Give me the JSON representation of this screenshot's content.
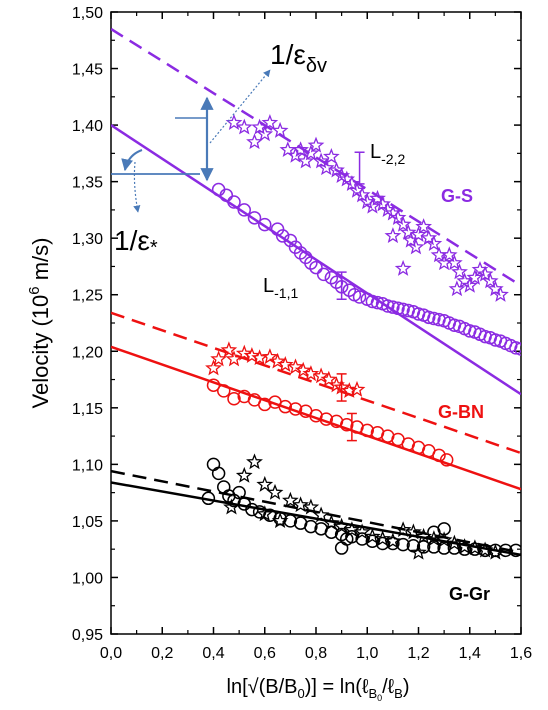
{
  "chart_data": {
    "type": "scatter",
    "xlabel_main": "ln[√(B/B",
    "xlabel_sub0": "0",
    "xlabel_mid": ")] = ln(ℓ",
    "xlabel_subB0": "B",
    "xlabel_subB0_sub": "0",
    "xlabel_slash": "/ℓ",
    "xlabel_subB": "B",
    "xlabel_close": ")",
    "ylabel_pre": "Velocity (10",
    "ylabel_sup": "6",
    "ylabel_post": " m/s)",
    "xlim": [
      0.0,
      1.6
    ],
    "ylim": [
      0.95,
      1.5
    ],
    "xticks": [
      "0,0",
      "0,2",
      "0,4",
      "0,6",
      "0,8",
      "1,0",
      "1,2",
      "1,4",
      "1,6"
    ],
    "yticks": [
      "0,95",
      "1,00",
      "1,05",
      "1,10",
      "1,15",
      "1,20",
      "1,25",
      "1,30",
      "1,35",
      "1,40",
      "1,45",
      "1,50"
    ],
    "colors": {
      "gs": "#8b2be2",
      "gbn": "#ee1111",
      "ggr": "#000000",
      "annotation": "#4a7ab8"
    },
    "series": [
      {
        "name": "G-S",
        "color": "#8b2be2",
        "fit_solid": {
          "label_main": "L",
          "label_sub": "-1,1",
          "points": [
            [
              0.0,
              1.4
            ],
            [
              1.6,
              1.162
            ]
          ]
        },
        "fit_dashed": {
          "label_main": "L",
          "label_sub": "-2,2",
          "points": [
            [
              0.0,
              1.485
            ],
            [
              1.6,
              1.258
            ]
          ]
        },
        "circles": [
          [
            0.42,
            1.343
          ],
          [
            0.45,
            1.338
          ],
          [
            0.48,
            1.332
          ],
          [
            0.52,
            1.325
          ],
          [
            0.56,
            1.318
          ],
          [
            0.6,
            1.312
          ],
          [
            0.65,
            1.308
          ],
          [
            0.67,
            1.302
          ],
          [
            0.7,
            1.298
          ],
          [
            0.72,
            1.292
          ],
          [
            0.74,
            1.287
          ],
          [
            0.76,
            1.283
          ],
          [
            0.78,
            1.278
          ],
          [
            0.8,
            1.274
          ],
          [
            0.83,
            1.268
          ],
          [
            0.86,
            1.265
          ],
          [
            0.88,
            1.261
          ],
          [
            0.9,
            1.257
          ],
          [
            0.93,
            1.254
          ],
          [
            0.95,
            1.25
          ],
          [
            0.97,
            1.248
          ],
          [
            1.0,
            1.246
          ],
          [
            1.02,
            1.244
          ],
          [
            1.04,
            1.243
          ],
          [
            1.06,
            1.242
          ],
          [
            1.08,
            1.24
          ],
          [
            1.1,
            1.239
          ],
          [
            1.12,
            1.238
          ],
          [
            1.14,
            1.237
          ],
          [
            1.16,
            1.236
          ],
          [
            1.18,
            1.235
          ],
          [
            1.2,
            1.233
          ],
          [
            1.22,
            1.232
          ],
          [
            1.24,
            1.23
          ],
          [
            1.26,
            1.229
          ],
          [
            1.28,
            1.228
          ],
          [
            1.3,
            1.227
          ],
          [
            1.32,
            1.225
          ],
          [
            1.34,
            1.223
          ],
          [
            1.36,
            1.222
          ],
          [
            1.38,
            1.22
          ],
          [
            1.4,
            1.218
          ],
          [
            1.42,
            1.217
          ],
          [
            1.44,
            1.215
          ],
          [
            1.46,
            1.213
          ],
          [
            1.48,
            1.212
          ],
          [
            1.5,
            1.21
          ],
          [
            1.52,
            1.209
          ],
          [
            1.54,
            1.207
          ],
          [
            1.56,
            1.205
          ],
          [
            1.58,
            1.203
          ],
          [
            1.6,
            1.202
          ]
        ],
        "stars": [
          [
            0.48,
            1.402
          ],
          [
            0.52,
            1.398
          ],
          [
            0.56,
            1.385
          ],
          [
            0.58,
            1.398
          ],
          [
            0.6,
            1.392
          ],
          [
            0.62,
            1.402
          ],
          [
            0.66,
            1.395
          ],
          [
            0.69,
            1.378
          ],
          [
            0.72,
            1.373
          ],
          [
            0.74,
            1.378
          ],
          [
            0.76,
            1.368
          ],
          [
            0.78,
            1.375
          ],
          [
            0.8,
            1.382
          ],
          [
            0.82,
            1.368
          ],
          [
            0.84,
            1.362
          ],
          [
            0.86,
            1.372
          ],
          [
            0.88,
            1.36
          ],
          [
            0.9,
            1.355
          ],
          [
            0.92,
            1.352
          ],
          [
            0.94,
            1.348
          ],
          [
            0.96,
            1.342
          ],
          [
            0.98,
            1.338
          ],
          [
            1.0,
            1.332
          ],
          [
            1.02,
            1.328
          ],
          [
            1.04,
            1.335
          ],
          [
            1.06,
            1.33
          ],
          [
            1.08,
            1.325
          ],
          [
            1.1,
            1.322
          ],
          [
            1.12,
            1.318
          ],
          [
            1.14,
            1.312
          ],
          [
            1.16,
            1.305
          ],
          [
            1.17,
            1.298
          ],
          [
            1.19,
            1.292
          ],
          [
            1.2,
            1.303
          ],
          [
            1.22,
            1.31
          ],
          [
            1.24,
            1.3
          ],
          [
            1.26,
            1.295
          ],
          [
            1.28,
            1.285
          ],
          [
            1.3,
            1.278
          ],
          [
            1.32,
            1.285
          ],
          [
            1.34,
            1.278
          ],
          [
            1.36,
            1.27
          ],
          [
            1.38,
            1.262
          ],
          [
            1.4,
            1.258
          ],
          [
            1.42,
            1.265
          ],
          [
            1.44,
            1.272
          ],
          [
            1.46,
            1.268
          ],
          [
            1.48,
            1.262
          ],
          [
            1.5,
            1.255
          ],
          [
            1.52,
            1.25
          ],
          [
            1.35,
            1.255
          ],
          [
            1.14,
            1.273
          ],
          [
            1.1,
            1.302
          ]
        ],
        "error_bar": {
          "x": 0.9,
          "y": 1.258,
          "err": 0.012,
          "star_x": 0.97,
          "star_y": 1.362,
          "star_err": 0.014
        }
      },
      {
        "name": "G-BN",
        "color": "#ee1111",
        "fit_solid": {
          "points": [
            [
              0.0,
              1.204
            ],
            [
              1.6,
              1.078
            ]
          ]
        },
        "fit_dashed": {
          "points": [
            [
              0.0,
              1.234
            ],
            [
              1.6,
              1.11
            ]
          ]
        },
        "circles": [
          [
            0.4,
            1.17
          ],
          [
            0.44,
            1.165
          ],
          [
            0.48,
            1.158
          ],
          [
            0.52,
            1.16
          ],
          [
            0.56,
            1.157
          ],
          [
            0.6,
            1.153
          ],
          [
            0.64,
            1.155
          ],
          [
            0.68,
            1.151
          ],
          [
            0.72,
            1.149
          ],
          [
            0.76,
            1.147
          ],
          [
            0.8,
            1.143
          ],
          [
            0.84,
            1.14
          ],
          [
            0.88,
            1.138
          ],
          [
            0.92,
            1.135
          ],
          [
            0.96,
            1.133
          ],
          [
            1.0,
            1.13
          ],
          [
            1.04,
            1.128
          ],
          [
            1.08,
            1.125
          ],
          [
            1.12,
            1.122
          ],
          [
            1.16,
            1.118
          ],
          [
            1.2,
            1.115
          ],
          [
            1.24,
            1.112
          ],
          [
            1.28,
            1.108
          ],
          [
            1.31,
            1.104
          ]
        ],
        "stars": [
          [
            0.42,
            1.193
          ],
          [
            0.46,
            1.201
          ],
          [
            0.48,
            1.193
          ],
          [
            0.52,
            1.198
          ],
          [
            0.55,
            1.196
          ],
          [
            0.58,
            1.194
          ],
          [
            0.62,
            1.195
          ],
          [
            0.65,
            1.191
          ],
          [
            0.68,
            1.188
          ],
          [
            0.72,
            1.186
          ],
          [
            0.75,
            1.183
          ],
          [
            0.78,
            1.18
          ],
          [
            0.82,
            1.178
          ],
          [
            0.85,
            1.175
          ],
          [
            0.88,
            1.17
          ],
          [
            0.9,
            1.168
          ],
          [
            0.93,
            1.165
          ],
          [
            0.96,
            1.166
          ],
          [
            0.4,
            1.185
          ]
        ],
        "error_bar": {
          "x": 0.9,
          "y": 1.168,
          "err": 0.012,
          "circle_x": 0.94,
          "circle_y": 1.133,
          "circle_err": 0.012
        }
      },
      {
        "name": "G-Gr",
        "color": "#000000",
        "fit_solid": {
          "points": [
            [
              0.0,
              1.084
            ],
            [
              1.6,
              1.02
            ]
          ]
        },
        "fit_dashed": {
          "points": [
            [
              0.0,
              1.094
            ],
            [
              1.6,
              1.022
            ]
          ]
        },
        "circles": [
          [
            0.4,
            1.1
          ],
          [
            0.42,
            1.092
          ],
          [
            0.44,
            1.08
          ],
          [
            0.46,
            1.072
          ],
          [
            0.48,
            1.068
          ],
          [
            0.5,
            1.075
          ],
          [
            0.52,
            1.065
          ],
          [
            0.55,
            1.06
          ],
          [
            0.58,
            1.058
          ],
          [
            0.62,
            1.055
          ],
          [
            0.66,
            1.052
          ],
          [
            0.7,
            1.05
          ],
          [
            0.74,
            1.048
          ],
          [
            0.78,
            1.045
          ],
          [
            0.82,
            1.043
          ],
          [
            0.86,
            1.04
          ],
          [
            0.9,
            1.038
          ],
          [
            0.94,
            1.036
          ],
          [
            0.98,
            1.034
          ],
          [
            1.02,
            1.032
          ],
          [
            1.06,
            1.03
          ],
          [
            1.1,
            1.03
          ],
          [
            1.14,
            1.029
          ],
          [
            1.18,
            1.028
          ],
          [
            1.22,
            1.027
          ],
          [
            1.26,
            1.027
          ],
          [
            1.3,
            1.026
          ],
          [
            1.34,
            1.026
          ],
          [
            1.38,
            1.025
          ],
          [
            1.42,
            1.025
          ],
          [
            1.46,
            1.024
          ],
          [
            1.5,
            1.024
          ],
          [
            1.54,
            1.024
          ],
          [
            1.58,
            1.024
          ],
          [
            0.38,
            1.07
          ],
          [
            0.9,
            1.026
          ],
          [
            0.92,
            1.034
          ],
          [
            1.3,
            1.043
          ],
          [
            1.26,
            1.04
          ]
        ],
        "stars": [
          [
            0.52,
            1.09
          ],
          [
            0.56,
            1.102
          ],
          [
            0.6,
            1.082
          ],
          [
            0.64,
            1.075
          ],
          [
            0.7,
            1.068
          ],
          [
            0.74,
            1.064
          ],
          [
            0.78,
            1.062
          ],
          [
            0.82,
            1.055
          ],
          [
            0.86,
            1.048
          ],
          [
            0.9,
            1.045
          ],
          [
            0.94,
            1.042
          ],
          [
            0.98,
            1.04
          ],
          [
            1.02,
            1.036
          ],
          [
            1.06,
            1.034
          ],
          [
            1.1,
            1.032
          ],
          [
            1.14,
            1.042
          ],
          [
            1.18,
            1.04
          ],
          [
            1.22,
            1.036
          ],
          [
            1.26,
            1.034
          ],
          [
            1.3,
            1.033
          ],
          [
            1.34,
            1.03
          ],
          [
            1.38,
            1.027
          ],
          [
            1.42,
            1.026
          ],
          [
            1.46,
            1.024
          ],
          [
            1.5,
            1.022
          ],
          [
            0.47,
            1.062
          ],
          [
            0.6,
            1.056
          ],
          [
            1.2,
            1.022
          ],
          [
            0.66,
            1.05
          ]
        ]
      }
    ],
    "annotations": {
      "eps_dv_main": "1/ε",
      "eps_dv_sub": "δv",
      "eps_star_main": "1/ε",
      "eps_star_sub": "*",
      "series_labels": [
        "G-S",
        "G-BN",
        "G-Gr"
      ]
    }
  }
}
